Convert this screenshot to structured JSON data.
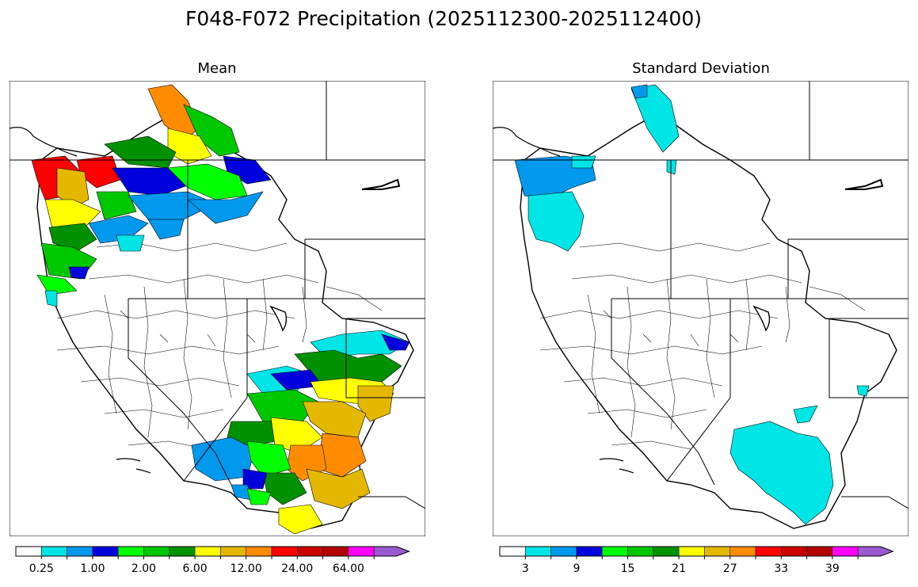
{
  "figure": {
    "title": "F048-F072 Precipitation (2025112300-2025112400)"
  },
  "panels": [
    {
      "id": "mean",
      "title": "Mean",
      "colorbar": {
        "colors": [
          "#ffffff",
          "#00e5e5",
          "#0099ee",
          "#0000dd",
          "#00ff00",
          "#00c800",
          "#009100",
          "#ffff00",
          "#e5b800",
          "#ff8c00",
          "#ff0000",
          "#cc0000",
          "#b30000",
          "#ff00ff",
          "#9b59d0"
        ],
        "tick_labels": [
          "0.25",
          "1.00",
          "2.00",
          "6.00",
          "12.00",
          "24.00",
          "64.00"
        ]
      }
    },
    {
      "id": "std",
      "title": "Standard Deviation",
      "colorbar": {
        "colors": [
          "#ffffff",
          "#00e5e5",
          "#0099ee",
          "#0000dd",
          "#00ff00",
          "#00c800",
          "#009100",
          "#ffff00",
          "#e5b800",
          "#ff8c00",
          "#ff0000",
          "#cc0000",
          "#b30000",
          "#ff00ff",
          "#9b59d0"
        ],
        "tick_labels": [
          "3",
          "9",
          "15",
          "21",
          "27",
          "33",
          "39"
        ]
      }
    }
  ]
}
